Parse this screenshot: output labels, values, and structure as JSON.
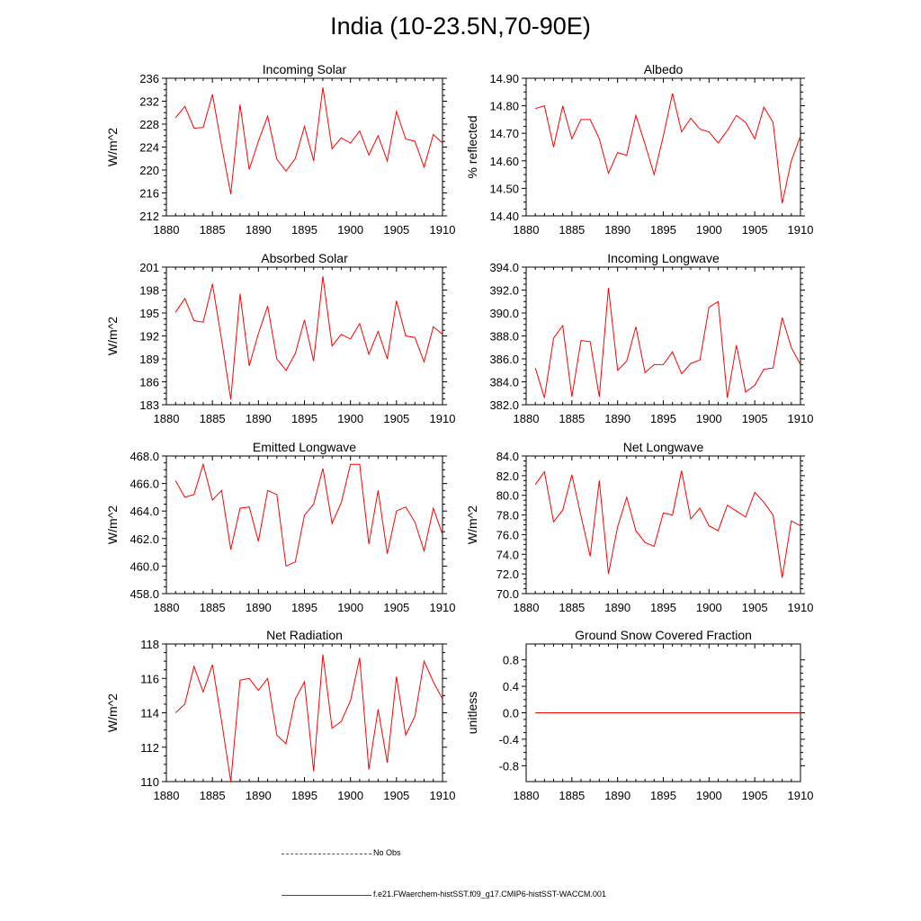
{
  "title": "India (10-23.5N,70-90E)",
  "legend": {
    "obs_label": "No Obs",
    "obs_color": "#3a3aff",
    "model_label": "f.e21.FWaerchem-histSST.f09_g17.CMIP6-histSST-WACCM.001",
    "model_color": "#ff0000"
  },
  "chart_data": [
    {
      "type": "line",
      "title": "Incoming Solar",
      "ylabel": "W/m^2",
      "xlim": [
        1880,
        1910
      ],
      "ylim": [
        212,
        236
      ],
      "xticks": [
        1880,
        1885,
        1890,
        1895,
        1900,
        1905,
        1910
      ],
      "yticks": [
        "212",
        "216",
        "220",
        "224",
        "228",
        "232",
        "236"
      ],
      "x": [
        1881,
        1882,
        1883,
        1884,
        1885,
        1886,
        1887,
        1888,
        1889,
        1890,
        1891,
        1892,
        1893,
        1894,
        1895,
        1896,
        1897,
        1898,
        1899,
        1900,
        1901,
        1902,
        1903,
        1904,
        1905,
        1906,
        1907,
        1908,
        1909,
        1910
      ],
      "series": [
        {
          "values": [
            229.1,
            231.1,
            227.3,
            227.4,
            233.2,
            224.2,
            215.8,
            231.4,
            220.1,
            225.0,
            229.4,
            221.9,
            219.8,
            222.0,
            227.6,
            221.6,
            234.4,
            223.7,
            225.6,
            224.7,
            226.8,
            222.6,
            226.0,
            221.6,
            230.2,
            225.4,
            225.0,
            220.5,
            226.2,
            224.7
          ]
        }
      ]
    },
    {
      "type": "line",
      "title": "Albedo",
      "ylabel": "% reflected",
      "xlim": [
        1880,
        1910
      ],
      "ylim": [
        14.4,
        14.9
      ],
      "xticks": [
        1880,
        1885,
        1890,
        1895,
        1900,
        1905,
        1910
      ],
      "yticks": [
        "14.40",
        "14.50",
        "14.60",
        "14.70",
        "14.80",
        "14.90"
      ],
      "x": [
        1881,
        1882,
        1883,
        1884,
        1885,
        1886,
        1887,
        1888,
        1889,
        1890,
        1891,
        1892,
        1893,
        1894,
        1895,
        1896,
        1897,
        1898,
        1899,
        1900,
        1901,
        1902,
        1903,
        1904,
        1905,
        1906,
        1907,
        1908,
        1909,
        1910
      ],
      "series": [
        {
          "values": [
            14.79,
            14.8,
            14.65,
            14.8,
            14.68,
            14.75,
            14.75,
            14.68,
            14.555,
            14.63,
            14.62,
            14.765,
            14.66,
            14.55,
            14.69,
            14.845,
            14.705,
            14.755,
            14.715,
            14.705,
            14.665,
            14.71,
            14.765,
            14.74,
            14.68,
            14.795,
            14.74,
            14.445,
            14.6,
            14.69
          ]
        }
      ]
    },
    {
      "type": "line",
      "title": "Absorbed Solar",
      "ylabel": "W/m^2",
      "xlim": [
        1880,
        1910
      ],
      "ylim": [
        183,
        201
      ],
      "xticks": [
        1880,
        1885,
        1890,
        1895,
        1900,
        1905,
        1910
      ],
      "yticks": [
        "183",
        "186",
        "189",
        "192",
        "195",
        "198",
        "201"
      ],
      "x": [
        1881,
        1882,
        1883,
        1884,
        1885,
        1886,
        1887,
        1888,
        1889,
        1890,
        1891,
        1892,
        1893,
        1894,
        1895,
        1896,
        1897,
        1898,
        1899,
        1900,
        1901,
        1902,
        1903,
        1904,
        1905,
        1906,
        1907,
        1908,
        1909,
        1910
      ],
      "series": [
        {
          "values": [
            195.1,
            196.9,
            194.0,
            193.8,
            198.8,
            191.5,
            183.7,
            197.5,
            188.1,
            192.3,
            195.9,
            189.0,
            187.5,
            189.7,
            194.1,
            188.7,
            199.8,
            190.7,
            192.2,
            191.6,
            193.6,
            189.6,
            192.6,
            189.0,
            196.6,
            192.0,
            191.8,
            188.6,
            193.2,
            192.2
          ]
        }
      ]
    },
    {
      "type": "line",
      "title": "Incoming Longwave",
      "ylabel": "",
      "xlim": [
        1880,
        1910
      ],
      "ylim": [
        382,
        394
      ],
      "xticks": [
        1880,
        1885,
        1890,
        1895,
        1900,
        1905,
        1910
      ],
      "yticks": [
        "382.0",
        "384.0",
        "386.0",
        "388.0",
        "390.0",
        "392.0",
        "394.0"
      ],
      "x": [
        1881,
        1882,
        1883,
        1884,
        1885,
        1886,
        1887,
        1888,
        1889,
        1890,
        1891,
        1892,
        1893,
        1894,
        1895,
        1896,
        1897,
        1898,
        1899,
        1900,
        1901,
        1902,
        1903,
        1904,
        1905,
        1906,
        1907,
        1908,
        1909,
        1910
      ],
      "series": [
        {
          "values": [
            385.2,
            382.6,
            387.8,
            388.9,
            382.7,
            387.6,
            387.5,
            382.7,
            392.2,
            385.0,
            385.8,
            388.8,
            384.8,
            385.5,
            385.5,
            386.6,
            384.7,
            385.6,
            385.9,
            390.5,
            391.0,
            382.6,
            387.2,
            383.1,
            383.7,
            385.1,
            385.2,
            389.6,
            387.0,
            385.5
          ]
        }
      ]
    },
    {
      "type": "line",
      "title": "Emitted Longwave",
      "ylabel": "W/m^2",
      "xlim": [
        1880,
        1910
      ],
      "ylim": [
        458,
        468
      ],
      "xticks": [
        1880,
        1885,
        1890,
        1895,
        1900,
        1905,
        1910
      ],
      "yticks": [
        "458.0",
        "460.0",
        "462.0",
        "464.0",
        "466.0",
        "468.0"
      ],
      "x": [
        1881,
        1882,
        1883,
        1884,
        1885,
        1886,
        1887,
        1888,
        1889,
        1890,
        1891,
        1892,
        1893,
        1894,
        1895,
        1896,
        1897,
        1898,
        1899,
        1900,
        1901,
        1902,
        1903,
        1904,
        1905,
        1906,
        1907,
        1908,
        1909,
        1910
      ],
      "series": [
        {
          "values": [
            466.2,
            465.0,
            465.2,
            467.4,
            464.8,
            465.5,
            461.2,
            464.2,
            464.3,
            461.8,
            465.5,
            465.2,
            460.0,
            460.3,
            463.7,
            464.5,
            467.1,
            463.1,
            464.6,
            467.4,
            467.4,
            461.6,
            465.5,
            460.9,
            464.0,
            464.3,
            463.2,
            461.1,
            464.2,
            462.3
          ]
        }
      ]
    },
    {
      "type": "line",
      "title": "Net Longwave",
      "ylabel": "W/m^2",
      "xlim": [
        1880,
        1910
      ],
      "ylim": [
        70,
        84
      ],
      "xticks": [
        1880,
        1885,
        1890,
        1895,
        1900,
        1905,
        1910
      ],
      "yticks": [
        "70.0",
        "72.0",
        "74.0",
        "76.0",
        "78.0",
        "80.0",
        "82.0",
        "84.0"
      ],
      "x": [
        1881,
        1882,
        1883,
        1884,
        1885,
        1886,
        1887,
        1888,
        1889,
        1890,
        1891,
        1892,
        1893,
        1894,
        1895,
        1896,
        1897,
        1898,
        1899,
        1900,
        1901,
        1902,
        1903,
        1904,
        1905,
        1906,
        1907,
        1908,
        1909,
        1910
      ],
      "series": [
        {
          "values": [
            81.1,
            82.4,
            77.3,
            78.5,
            82.1,
            77.9,
            73.8,
            81.5,
            72.0,
            76.8,
            79.8,
            76.4,
            75.2,
            74.8,
            78.2,
            78.0,
            82.5,
            77.6,
            78.7,
            76.9,
            76.4,
            79.0,
            78.4,
            77.8,
            80.3,
            79.3,
            78.0,
            71.6,
            77.4,
            76.9
          ]
        }
      ]
    },
    {
      "type": "line",
      "title": "Net Radiation",
      "ylabel": "W/m^2",
      "xlim": [
        1880,
        1910
      ],
      "ylim": [
        110,
        118
      ],
      "xticks": [
        1880,
        1885,
        1890,
        1895,
        1900,
        1905,
        1910
      ],
      "yticks": [
        "110",
        "112",
        "114",
        "116",
        "118"
      ],
      "x": [
        1881,
        1882,
        1883,
        1884,
        1885,
        1886,
        1887,
        1888,
        1889,
        1890,
        1891,
        1892,
        1893,
        1894,
        1895,
        1896,
        1897,
        1898,
        1899,
        1900,
        1901,
        1902,
        1903,
        1904,
        1905,
        1906,
        1907,
        1908,
        1909,
        1910
      ],
      "series": [
        {
          "values": [
            114.0,
            114.5,
            116.7,
            115.2,
            116.8,
            113.5,
            110.0,
            115.9,
            116.0,
            115.3,
            116.0,
            112.7,
            112.2,
            114.8,
            115.8,
            110.6,
            117.4,
            113.1,
            113.5,
            114.7,
            117.2,
            110.7,
            114.2,
            111.1,
            116.1,
            112.7,
            113.8,
            117.0,
            115.8,
            114.8
          ]
        }
      ]
    },
    {
      "type": "line",
      "title": "Ground Snow Covered Fraction",
      "ylabel": "unitless",
      "xlim": [
        1880,
        1910
      ],
      "ylim": [
        -1.04,
        1.04
      ],
      "xticks": [
        1880,
        1885,
        1890,
        1895,
        1900,
        1905,
        1910
      ],
      "yticks": [
        "-0.8",
        "-0.4",
        "0.0",
        "0.4",
        "0.8"
      ],
      "x": [
        1881,
        1882,
        1883,
        1884,
        1885,
        1886,
        1887,
        1888,
        1889,
        1890,
        1891,
        1892,
        1893,
        1894,
        1895,
        1896,
        1897,
        1898,
        1899,
        1900,
        1901,
        1902,
        1903,
        1904,
        1905,
        1906,
        1907,
        1908,
        1909,
        1910
      ],
      "series": [
        {
          "values": [
            0,
            0,
            0,
            0,
            0,
            0,
            0,
            0,
            0,
            0,
            0,
            0,
            0,
            0,
            0,
            0,
            0,
            0,
            0,
            0,
            0,
            0,
            0,
            0,
            0,
            0,
            0,
            0,
            0,
            0
          ]
        }
      ]
    }
  ]
}
